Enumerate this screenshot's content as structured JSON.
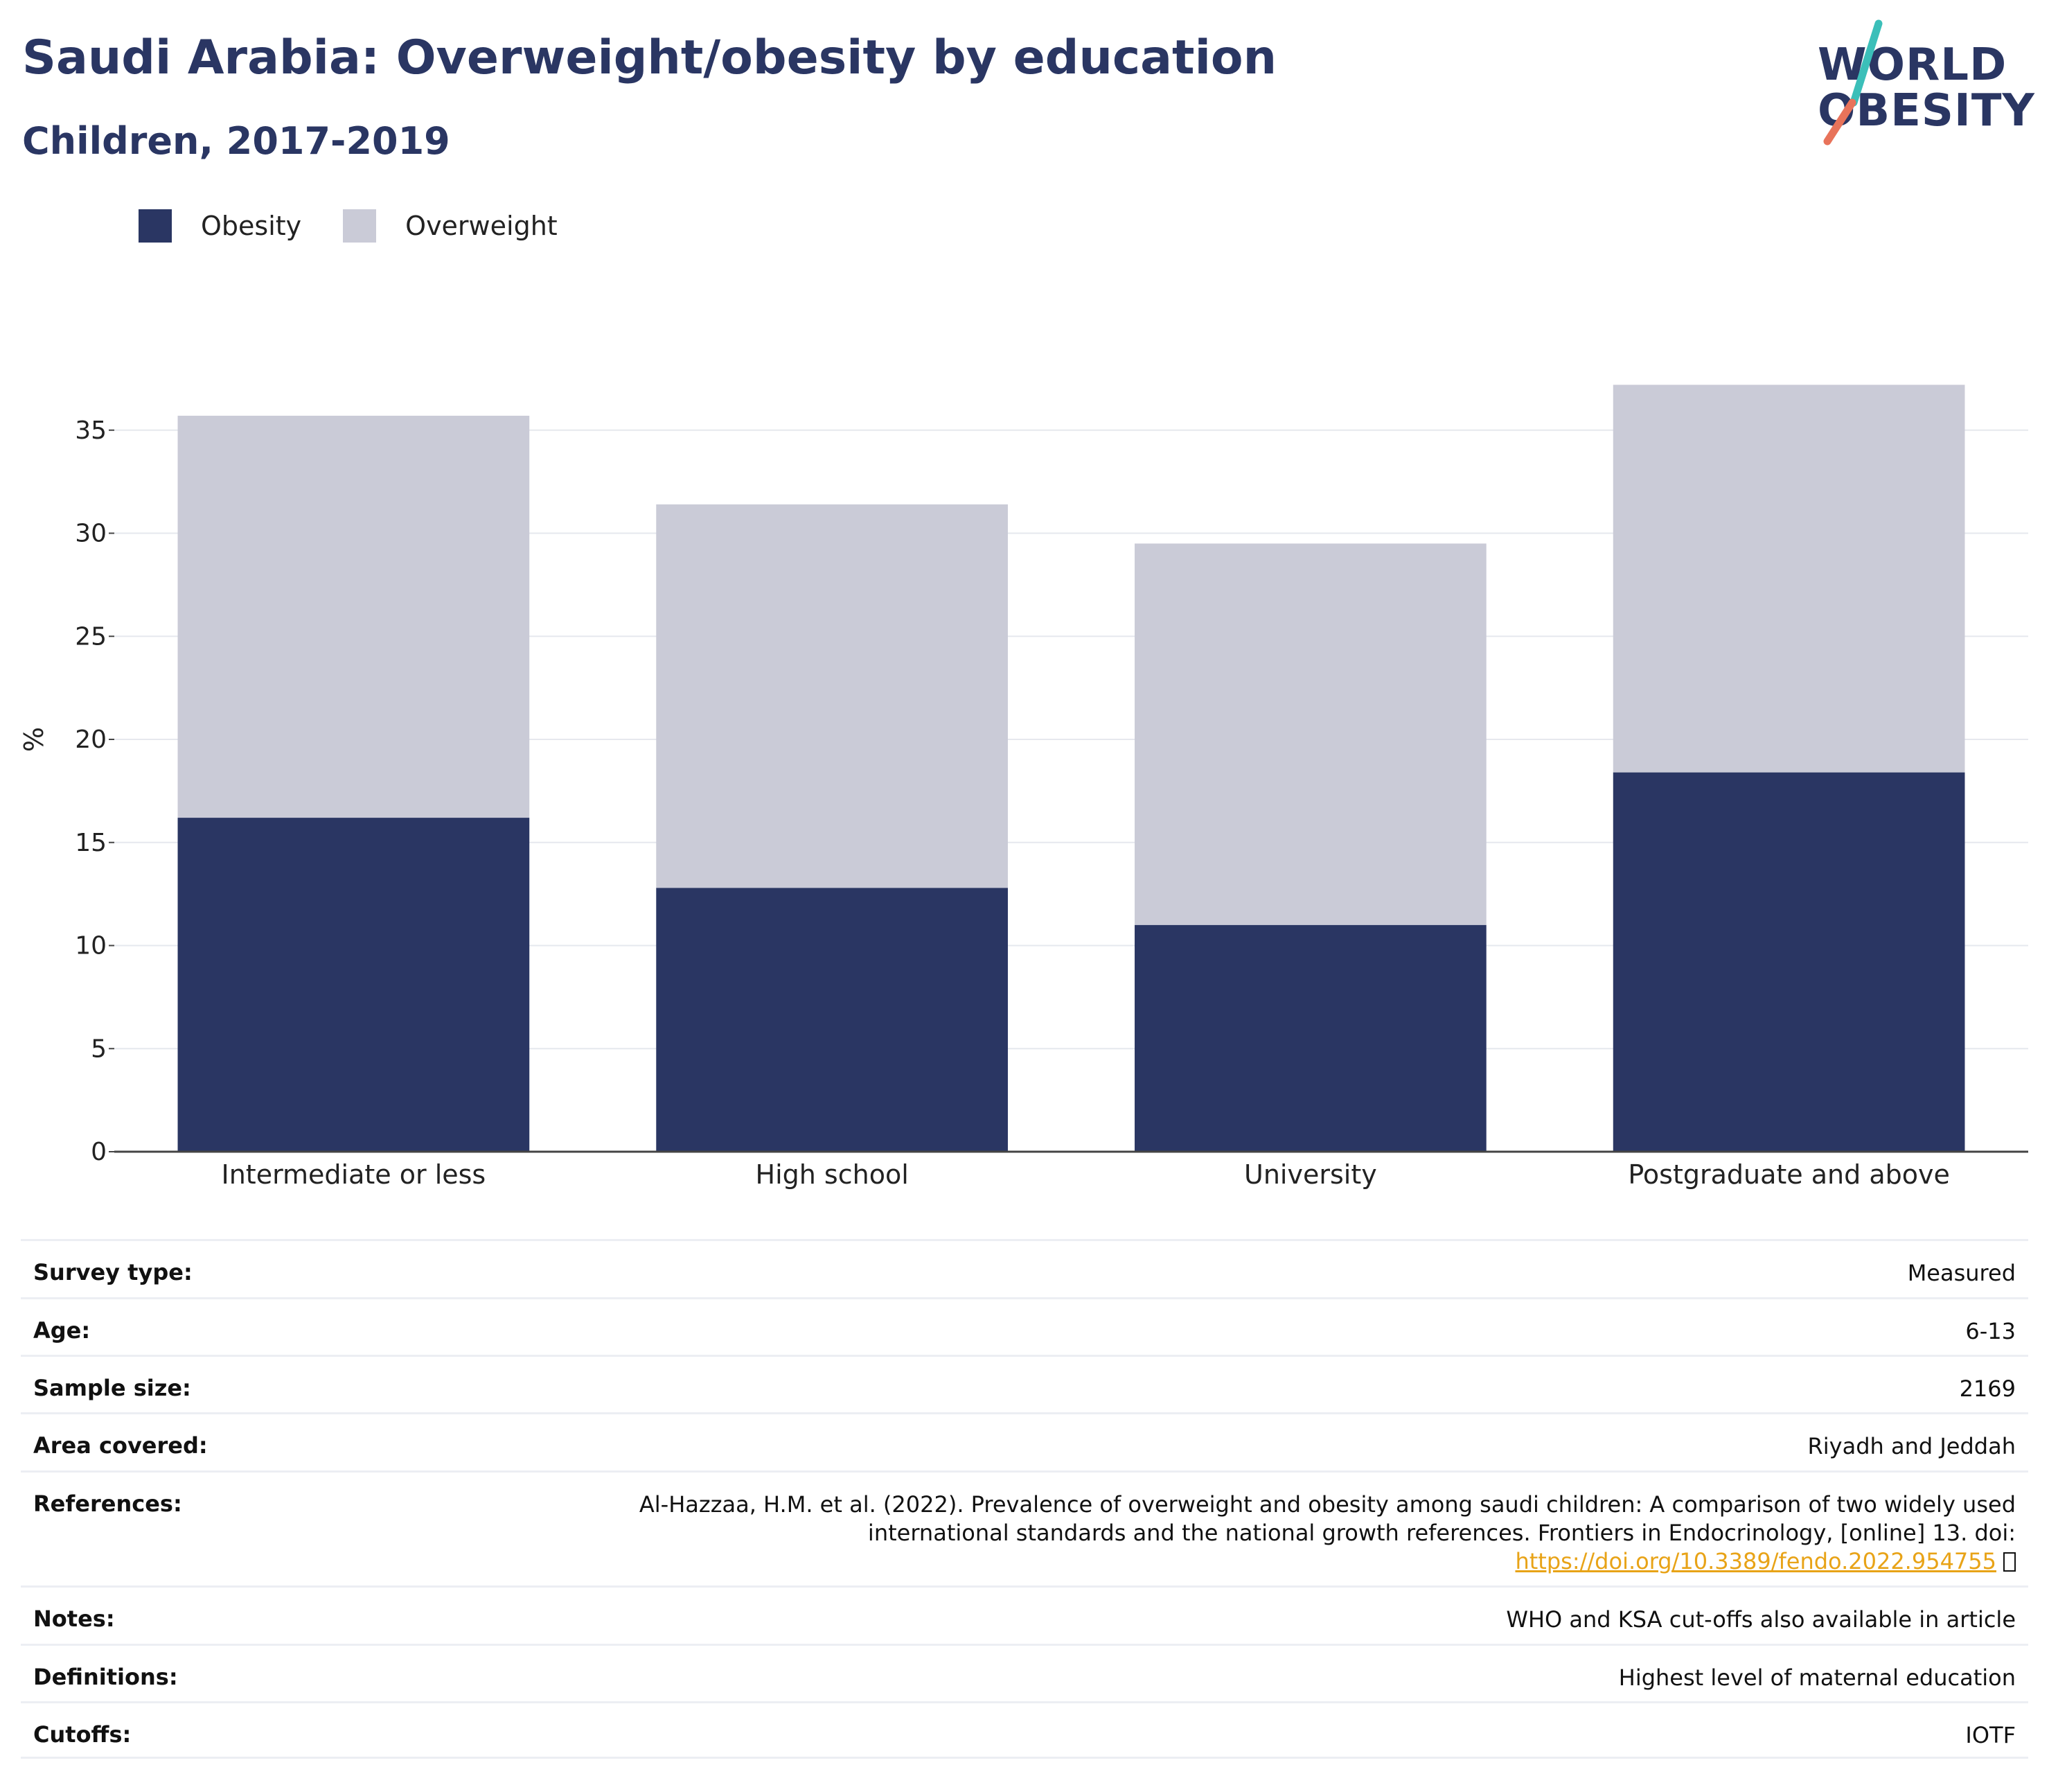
{
  "header": {
    "title": "Saudi Arabia: Overweight/obesity by education",
    "subtitle": "Children, 2017-2019"
  },
  "logo": {
    "line1": "WORLD",
    "line2": "OBESITY",
    "accent_colors": [
      "#3bbfb9",
      "#e8735a"
    ]
  },
  "colors": {
    "obesity": "#2a3663",
    "overweight": "#cacbd7",
    "title": "#2a3663",
    "link": "#e8a317"
  },
  "chart_data": {
    "type": "bar",
    "stacked": true,
    "categories": [
      "Intermediate or less",
      "High school",
      "University",
      "Postgraduate and above"
    ],
    "series": [
      {
        "name": "Obesity",
        "values": [
          16.2,
          12.8,
          11.0,
          18.4
        ]
      },
      {
        "name": "Overweight",
        "values": [
          19.5,
          18.6,
          18.5,
          18.8
        ]
      }
    ],
    "title": "Saudi Arabia: Overweight/obesity by education",
    "subtitle": "Children, 2017-2019",
    "xlabel": "",
    "ylabel": "%",
    "ylim": [
      0,
      40
    ],
    "yticks": [
      0,
      5,
      10,
      15,
      20,
      25,
      30,
      35
    ],
    "grid": true,
    "legend_position": "top-left"
  },
  "info": {
    "survey_type": {
      "label": "Survey type:",
      "value": "Measured"
    },
    "age": {
      "label": "Age:",
      "value": "6-13"
    },
    "sample_size": {
      "label": "Sample size:",
      "value": "2169"
    },
    "area": {
      "label": "Area covered:",
      "value": "Riyadh and Jeddah"
    },
    "references": {
      "label": "References:",
      "text": "Al-Hazzaa, H.M. et al. (2022). Prevalence of overweight and obesity among saudi children: A comparison of two widely used international standards and the national growth references. Frontiers in Endocrinology, [online] 13. doi:",
      "link": "https://doi.org/10.3389/fendo.2022.954755"
    },
    "notes": {
      "label": "Notes:",
      "value": "WHO and KSA cut-offs also available in article"
    },
    "definitions": {
      "label": "Definitions:",
      "value": "Highest level of maternal education"
    },
    "cutoffs": {
      "label": "Cutoffs:",
      "value": "IOTF"
    }
  }
}
